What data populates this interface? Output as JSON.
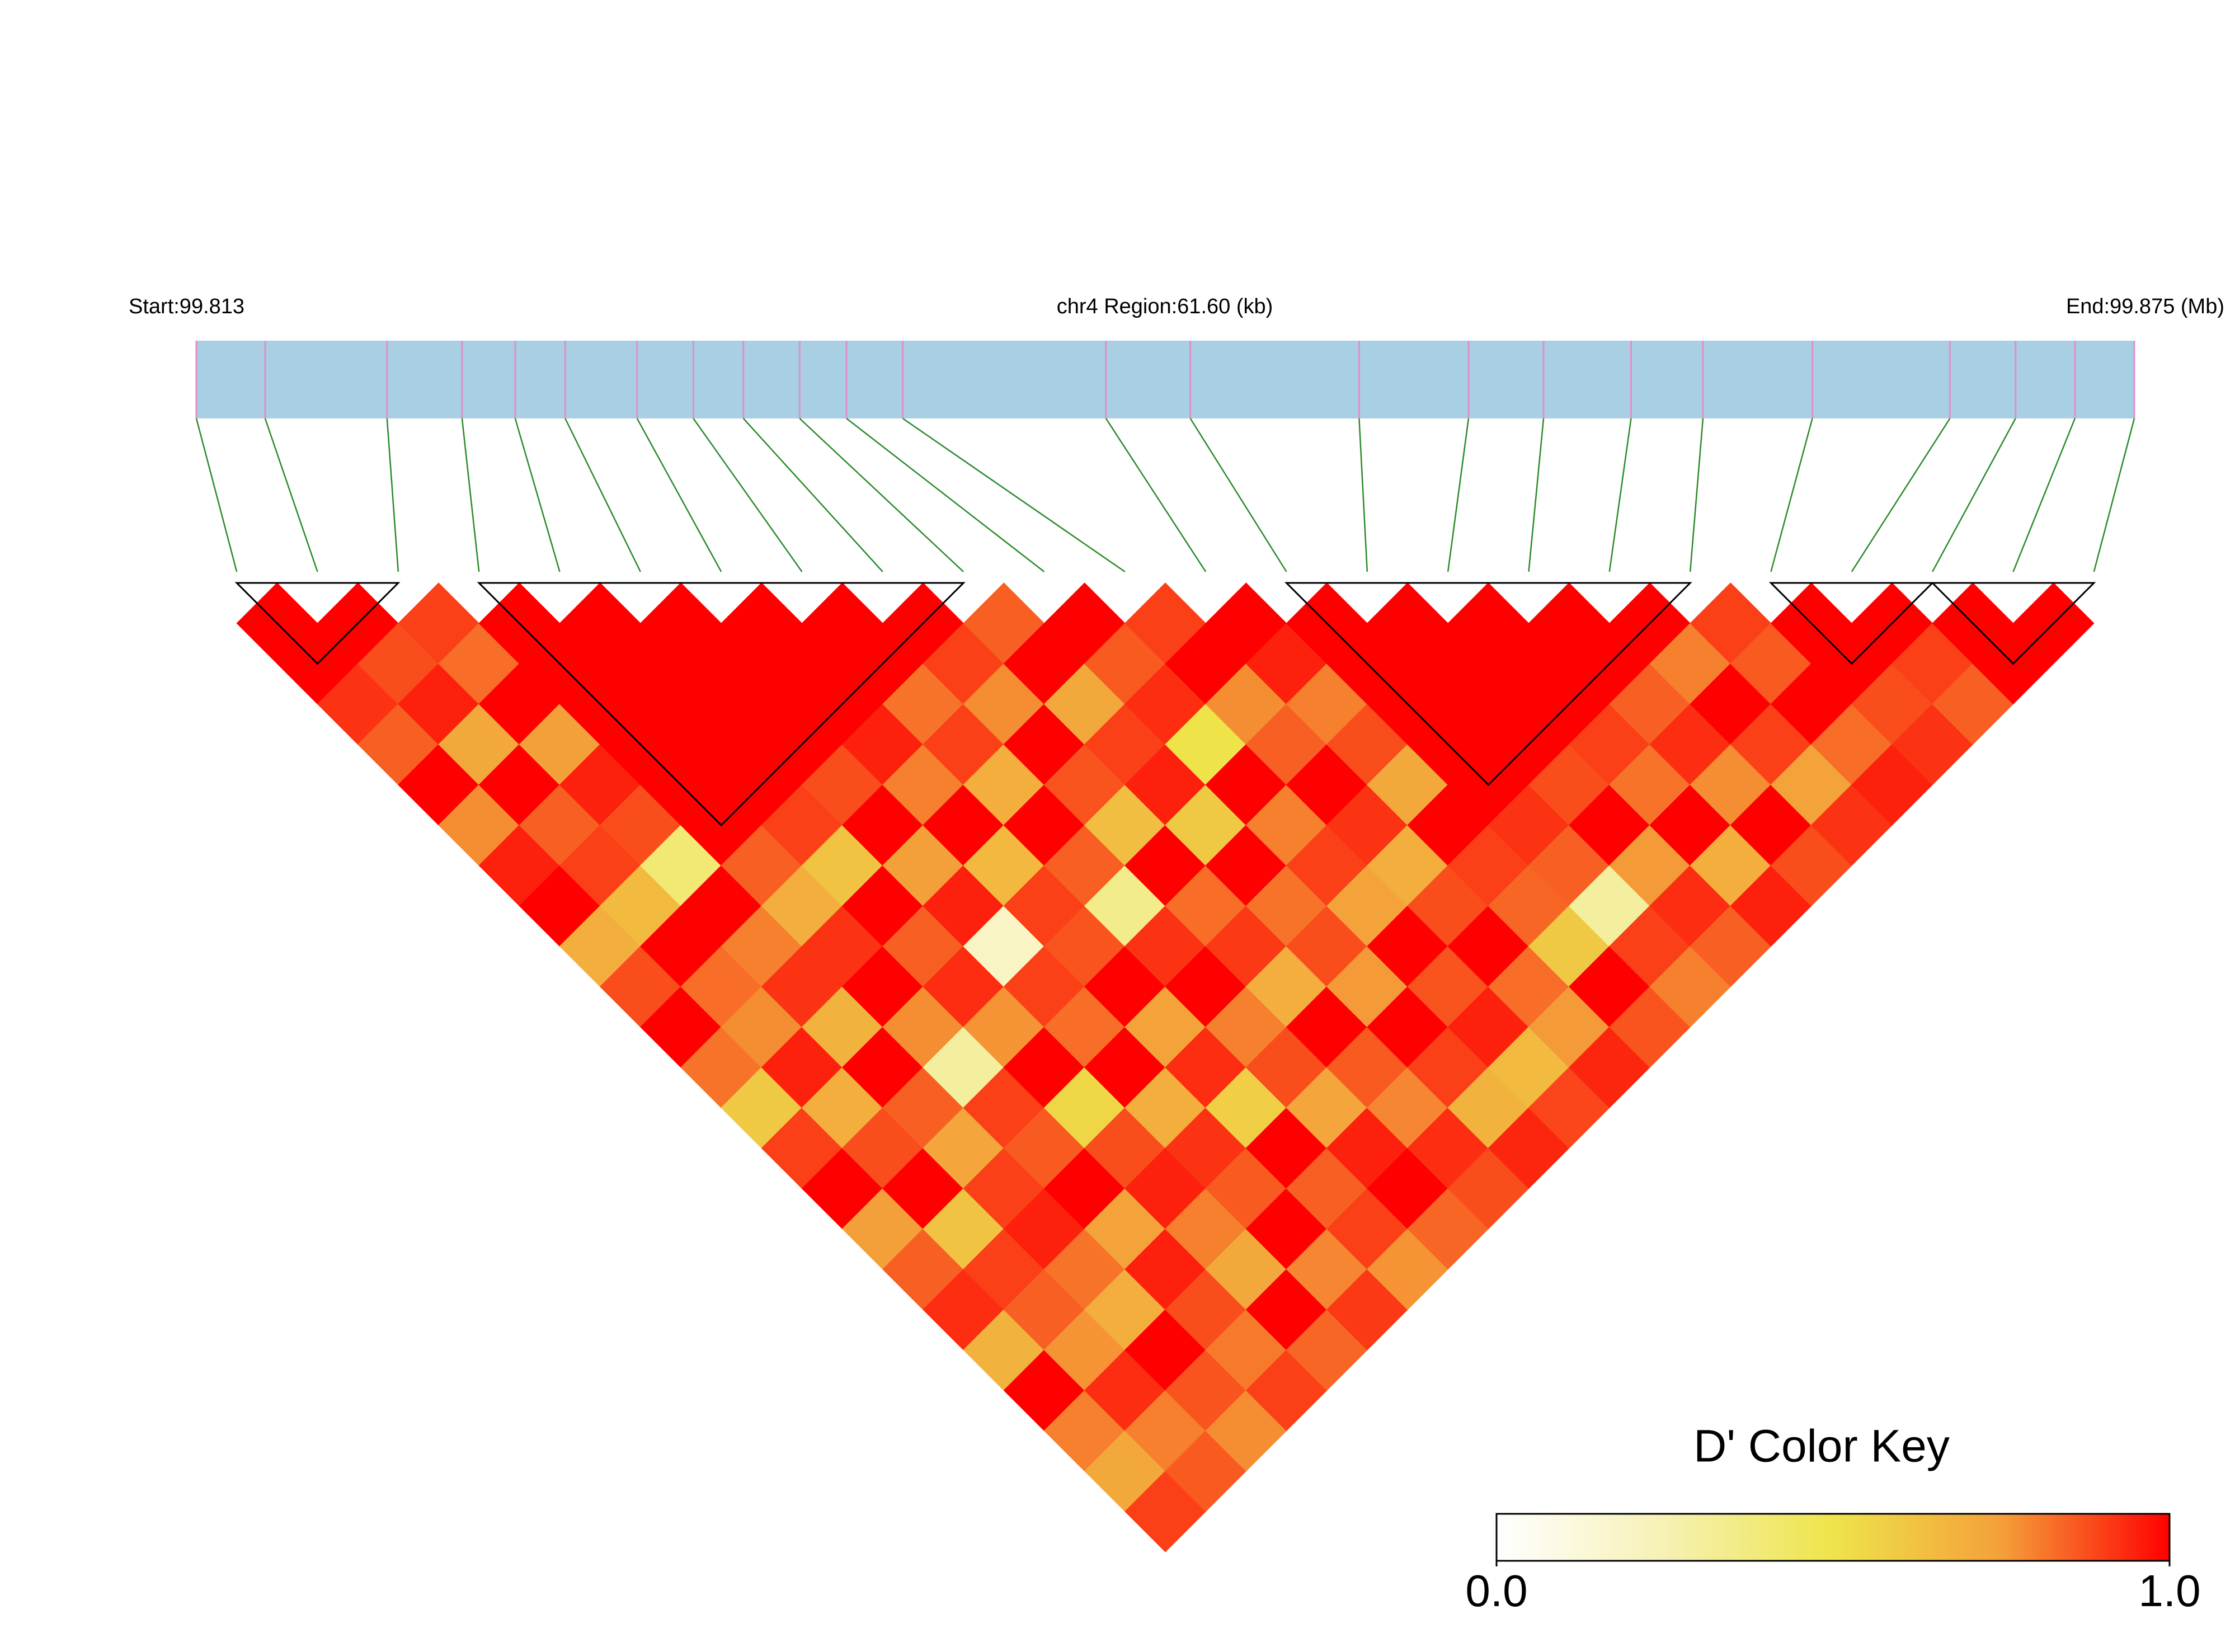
{
  "chart_data": {
    "type": "ld-heatmap",
    "start_label": "Start:99.813",
    "region_label": "chr4 Region:61.60 (kb)",
    "end_label": "End:99.875 (Mb)",
    "xlim": [
      99.813,
      99.875
    ],
    "snp_positions": [
      99.813,
      99.8152,
      99.8191,
      99.8215,
      99.8232,
      99.8248,
      99.8271,
      99.8289,
      99.8305,
      99.8323,
      99.8338,
      99.8356,
      99.8421,
      99.8448,
      99.8502,
      99.8537,
      99.8561,
      99.8589,
      99.8612,
      99.8647,
      99.8691,
      99.8712,
      99.8731,
      99.875
    ],
    "ld": [
      [
        1,
        1,
        0.92,
        0.85,
        1,
        0.78,
        0.95,
        1,
        0.7,
        0.88,
        1,
        0.82,
        0.6,
        0.9,
        1,
        0.75,
        0.85,
        0.93,
        0.68,
        1,
        0.8,
        0.72,
        0.9
      ],
      [
        1,
        0.88,
        0.95,
        0.72,
        1,
        0.85,
        0.9,
        0.65,
        1,
        0.83,
        0.78,
        0.95,
        0.7,
        0.88,
        1,
        0.62,
        0.9,
        0.85,
        0.77,
        0.93,
        0.8,
        0.86
      ],
      [
        0.9,
        0.83,
        1,
        0.75,
        0.95,
        0.88,
        0.4,
        1,
        0.8,
        0.92,
        0.68,
        1,
        0.85,
        0.73,
        0.9,
        0.95,
        0.82,
        0.7,
        1,
        0.87,
        0.78
      ],
      [
        1,
        1,
        1,
        1,
        1,
        1,
        0.85,
        0.7,
        0.92,
        1,
        0.78,
        0.3,
        0.9,
        0.86,
        1,
        0.74,
        0.95,
        0.88,
        0.81,
        0.9
      ],
      [
        1,
        1,
        1,
        1,
        1,
        0.9,
        0.62,
        1,
        0.85,
        0.93,
        0.77,
        1,
        0.55,
        0.88,
        0.95,
        0.8,
        0.72,
        1,
        0.84
      ],
      [
        1,
        1,
        1,
        1,
        0.88,
        1,
        0.75,
        0.95,
        0.2,
        0.9,
        0.83,
        1,
        0.7,
        0.92,
        0.86,
        1,
        0.79,
        0.91
      ],
      [
        1,
        1,
        1,
        0.95,
        0.8,
        1,
        0.66,
        0.9,
        0.87,
        1,
        0.74,
        0.93,
        0.58,
        1,
        0.85,
        0.9,
        0.77
      ],
      [
        1,
        1,
        0.82,
        0.9,
        0.7,
        1,
        0.85,
        0.35,
        0.92,
        1,
        0.8,
        0.88,
        0.73,
        0.95,
        1,
        0.84
      ],
      [
        1,
        0.9,
        0.78,
        1,
        0.87,
        0.64,
        1,
        0.83,
        0.91,
        0.7,
        1,
        0.86,
        0.79,
        0.93,
        0.88
      ],
      [
        0.85,
        1,
        0.72,
        0.9,
        0.95,
        0.6,
        1,
        0.82,
        0.88,
        0.76,
        1,
        0.9,
        0.68,
        0.94
      ],
      [
        1,
        0.86,
        0.93,
        0.5,
        1,
        0.8,
        0.9,
        0.74,
        1,
        0.87,
        0.95,
        0.65,
        0.89
      ],
      [
        0.9,
        1,
        0.78,
        0.85,
        1,
        0.92,
        0.7,
        0.88,
        1,
        0.83,
        0.76,
        0.94
      ],
      [
        1,
        0.95,
        0.8,
        0.88,
        0.72,
        1,
        0.9,
        0.84,
        0.6,
        1,
        0.87
      ],
      [
        1,
        1,
        1,
        1,
        1,
        0.92,
        0.85,
        0.3,
        0.9,
        0.8
      ],
      [
        1,
        1,
        1,
        1,
        0.88,
        1,
        0.76,
        0.93,
        0.85
      ],
      [
        1,
        1,
        1,
        0.9,
        0.82,
        1,
        0.7,
        0.95
      ],
      [
        1,
        1,
        0.85,
        0.93,
        0.78,
        1,
        0.88
      ],
      [
        1,
        0.8,
        1,
        0.9,
        0.74,
        0.92
      ],
      [
        0.9,
        0.86,
        1,
        0.83,
        0.95
      ],
      [
        1,
        1,
        0.88,
        0.92
      ],
      [
        1,
        0.9,
        0.85
      ],
      [
        1,
        1
      ],
      [
        1
      ]
    ],
    "blocks": [
      [
        0,
        2
      ],
      [
        3,
        9
      ],
      [
        13,
        18
      ],
      [
        19,
        21
      ],
      [
        21,
        23
      ]
    ],
    "color_scale": [
      "#ffffff",
      "#f6f1b4",
      "#eee44a",
      "#f4a03a",
      "#ff0000"
    ],
    "key_title": "D' Color Key",
    "clim": [
      0,
      1
    ],
    "key_ticks": [
      {
        "value": 0,
        "label": "0.0"
      },
      {
        "value": 1,
        "label": "1.0"
      }
    ]
  }
}
